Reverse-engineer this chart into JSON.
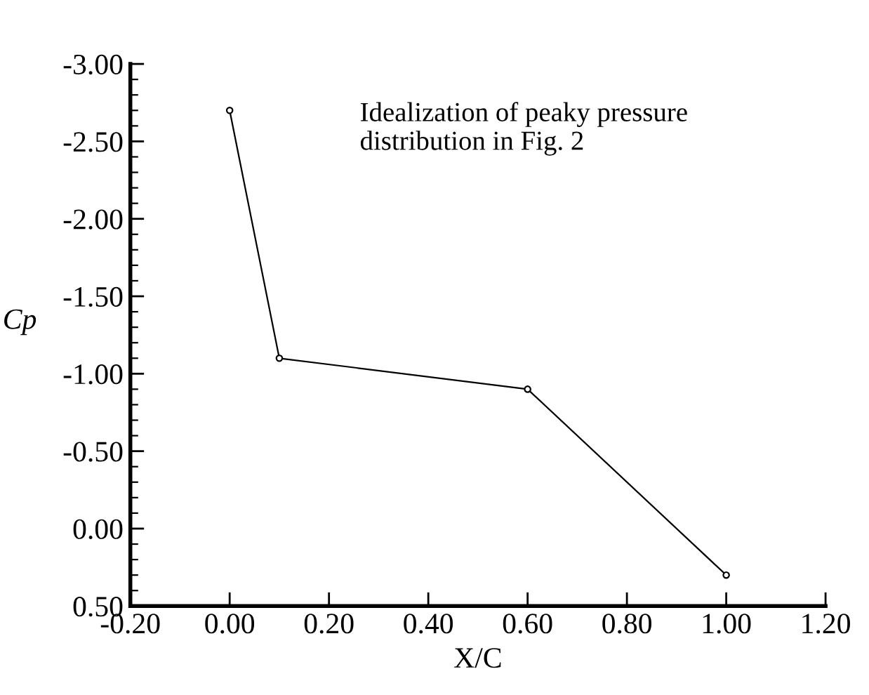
{
  "chart_data": {
    "type": "line",
    "xlabel": "X/C",
    "ylabel": "Cp",
    "x": [
      0.0,
      0.1,
      0.6,
      1.0
    ],
    "series": [
      {
        "color": "#000000",
        "values": [
          -2.7,
          -1.1,
          -0.9,
          0.3
        ]
      }
    ],
    "marker": "circle",
    "line_style": "solid",
    "grid": false,
    "legend": false,
    "xlim": [
      -0.2,
      1.2
    ],
    "ylim": [
      0.5,
      -3.0
    ],
    "xticks": [
      {
        "value": -0.2,
        "label": "-0.20"
      },
      {
        "value": 0.0,
        "label": "0.00"
      },
      {
        "value": 0.2,
        "label": "0.20"
      },
      {
        "value": 0.4,
        "label": "0.40"
      },
      {
        "value": 0.6,
        "label": "0.60"
      },
      {
        "value": 0.8,
        "label": "0.80"
      },
      {
        "value": 1.0,
        "label": "1.00"
      },
      {
        "value": 1.2,
        "label": "1.20"
      }
    ],
    "yticks": [
      {
        "value": -3.0,
        "label": "-3.00"
      },
      {
        "value": -2.5,
        "label": "-2.50"
      },
      {
        "value": -2.0,
        "label": "-2.00"
      },
      {
        "value": -1.5,
        "label": "-1.50"
      },
      {
        "value": -1.0,
        "label": "-1.00"
      },
      {
        "value": -0.5,
        "label": "-0.50"
      },
      {
        "value": 0.0,
        "label": "0.00"
      },
      {
        "value": 0.5,
        "label": "0.50"
      }
    ],
    "annotations": [
      "Idealization of peaky pressure\ndistribution in Fig. 2"
    ]
  }
}
